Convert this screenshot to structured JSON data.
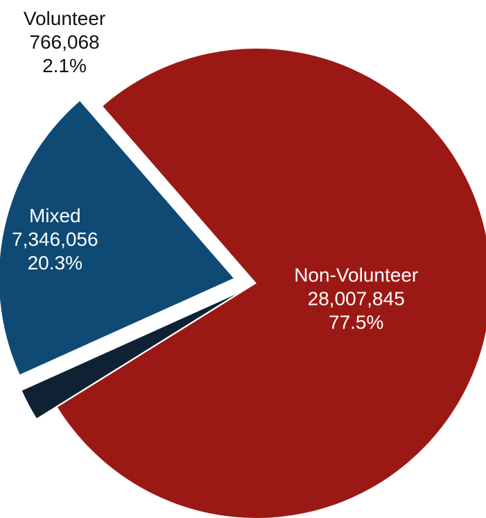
{
  "chart_data": {
    "type": "pie",
    "title": "",
    "slices": [
      {
        "name": "Non-Volunteer",
        "value": 28007845,
        "value_label": "28,007,845",
        "percent": 77.5,
        "percent_label": "77.5%",
        "color": "#9b1915",
        "label_color": "#ffffff",
        "exploded": false
      },
      {
        "name": "Volunteer",
        "value": 766068,
        "value_label": "766,068",
        "percent": 2.1,
        "percent_label": "2.1%",
        "color": "#0e2233",
        "label_color": "#111111",
        "exploded": true
      },
      {
        "name": "Mixed",
        "value": 7346056,
        "value_label": "7,346,056",
        "percent": 20.3,
        "percent_label": "20.3%",
        "color": "#0e4a74",
        "label_color": "#ffffff",
        "exploded": true
      }
    ]
  }
}
